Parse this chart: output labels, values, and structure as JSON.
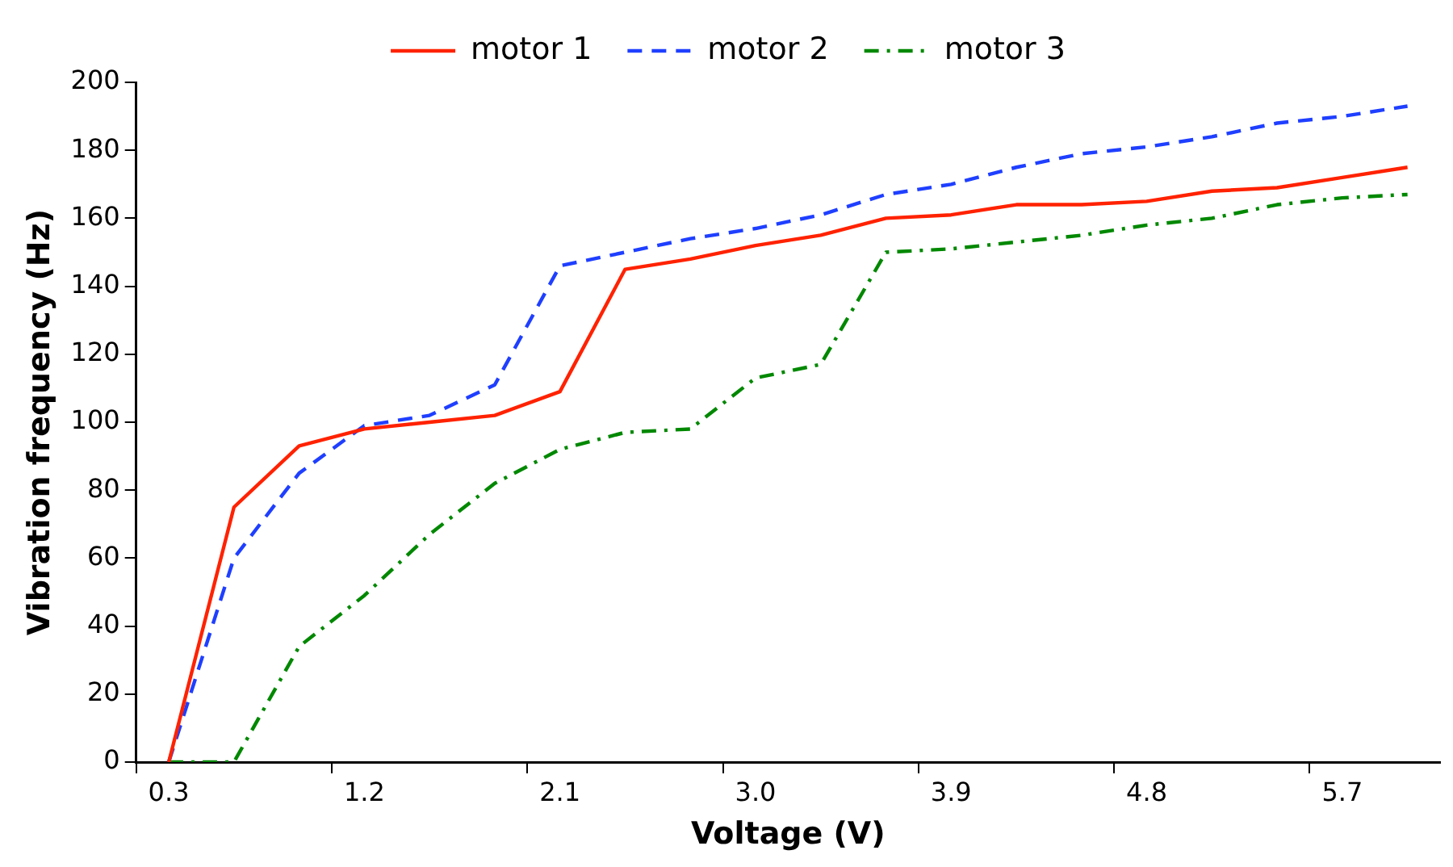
{
  "chart_data": {
    "type": "line",
    "xlabel": "Voltage (V)",
    "ylabel": "Vibration frequency (Hz)",
    "categories": [
      "0.3",
      null,
      null,
      "1.2",
      null,
      null,
      "2.1",
      null,
      null,
      "3.0",
      null,
      null,
      "3.9",
      null,
      null,
      "4.8",
      null,
      null,
      "5.7",
      null
    ],
    "series": [
      {
        "name": "motor 1",
        "color": "#ff2200",
        "line_style": "solid",
        "values": [
          0,
          75,
          93,
          98,
          100,
          102,
          109,
          145,
          148,
          152,
          155,
          160,
          161,
          164,
          164,
          165,
          168,
          169,
          172,
          175
        ]
      },
      {
        "name": "motor 2",
        "color": "#1f3fff",
        "line_style": "dashed",
        "values": [
          0,
          60,
          85,
          99,
          102,
          111,
          146,
          150,
          154,
          157,
          161,
          167,
          170,
          175,
          179,
          181,
          184,
          188,
          190,
          193
        ]
      },
      {
        "name": "motor 3",
        "color": "#008800",
        "line_style": "dashdot",
        "values": [
          0,
          0,
          34,
          49,
          67,
          82,
          92,
          97,
          98,
          113,
          117,
          150,
          151,
          153,
          155,
          158,
          160,
          164,
          166,
          167
        ]
      }
    ],
    "ylim": [
      0,
      200
    ],
    "yticks": [
      0,
      20,
      40,
      60,
      80,
      100,
      120,
      140,
      160,
      180,
      200
    ],
    "grid": false,
    "legend": "top",
    "marker": "none"
  }
}
